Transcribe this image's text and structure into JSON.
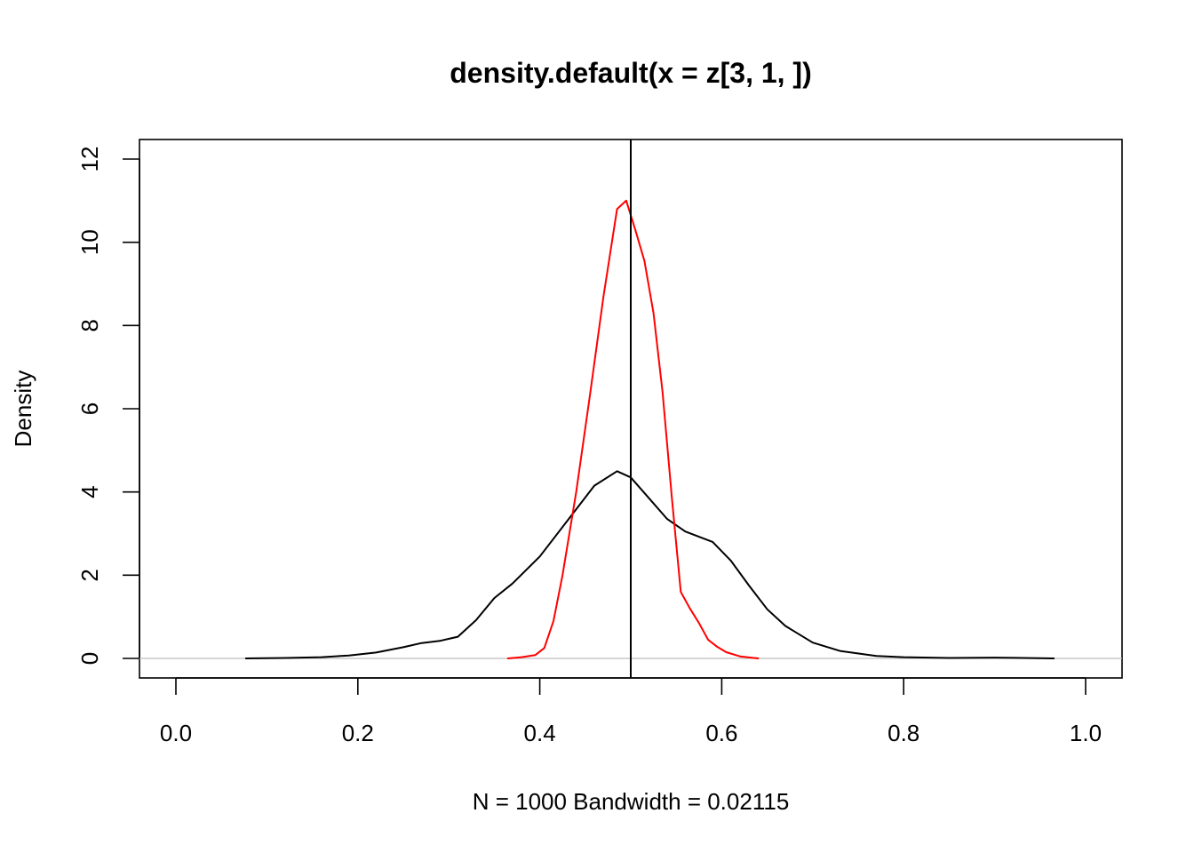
{
  "chart_data": {
    "type": "line",
    "title": "density.default(x = z[3, 1, ])",
    "xlabel": "N = 1000   Bandwidth = 0.02115",
    "ylabel": "Density",
    "xlim": [
      0.0,
      1.0
    ],
    "ylim": [
      0,
      12
    ],
    "x_ticks": [
      "0.0",
      "0.2",
      "0.4",
      "0.6",
      "0.8",
      "1.0"
    ],
    "y_ticks": [
      "0",
      "2",
      "4",
      "6",
      "8",
      "10",
      "12"
    ],
    "grid": false,
    "zero_line": true,
    "vline": 0.5,
    "series": [
      {
        "name": "density (black)",
        "color": "#000000",
        "x": [
          0.077,
          0.12,
          0.16,
          0.19,
          0.22,
          0.25,
          0.27,
          0.29,
          0.31,
          0.33,
          0.35,
          0.37,
          0.4,
          0.43,
          0.46,
          0.485,
          0.5,
          0.52,
          0.54,
          0.56,
          0.59,
          0.61,
          0.63,
          0.65,
          0.67,
          0.7,
          0.73,
          0.77,
          0.8,
          0.85,
          0.9,
          0.965
        ],
        "y": [
          0.0,
          0.01,
          0.03,
          0.07,
          0.14,
          0.27,
          0.37,
          0.42,
          0.52,
          0.92,
          1.45,
          1.8,
          2.45,
          3.3,
          4.15,
          4.5,
          4.35,
          3.85,
          3.35,
          3.05,
          2.8,
          2.35,
          1.75,
          1.18,
          0.78,
          0.38,
          0.18,
          0.06,
          0.03,
          0.01,
          0.02,
          0.0
        ]
      },
      {
        "name": "density (red)",
        "color": "#ff0000",
        "x": [
          0.365,
          0.38,
          0.395,
          0.405,
          0.415,
          0.425,
          0.44,
          0.455,
          0.47,
          0.485,
          0.495,
          0.505,
          0.515,
          0.525,
          0.535,
          0.545,
          0.555,
          0.565,
          0.575,
          0.585,
          0.595,
          0.605,
          0.62,
          0.64
        ],
        "y": [
          0.0,
          0.03,
          0.08,
          0.25,
          0.9,
          2.0,
          4.0,
          6.3,
          8.7,
          10.8,
          11.0,
          10.3,
          9.55,
          8.3,
          6.4,
          3.9,
          1.6,
          1.2,
          0.85,
          0.45,
          0.28,
          0.15,
          0.05,
          0.0
        ]
      }
    ]
  }
}
